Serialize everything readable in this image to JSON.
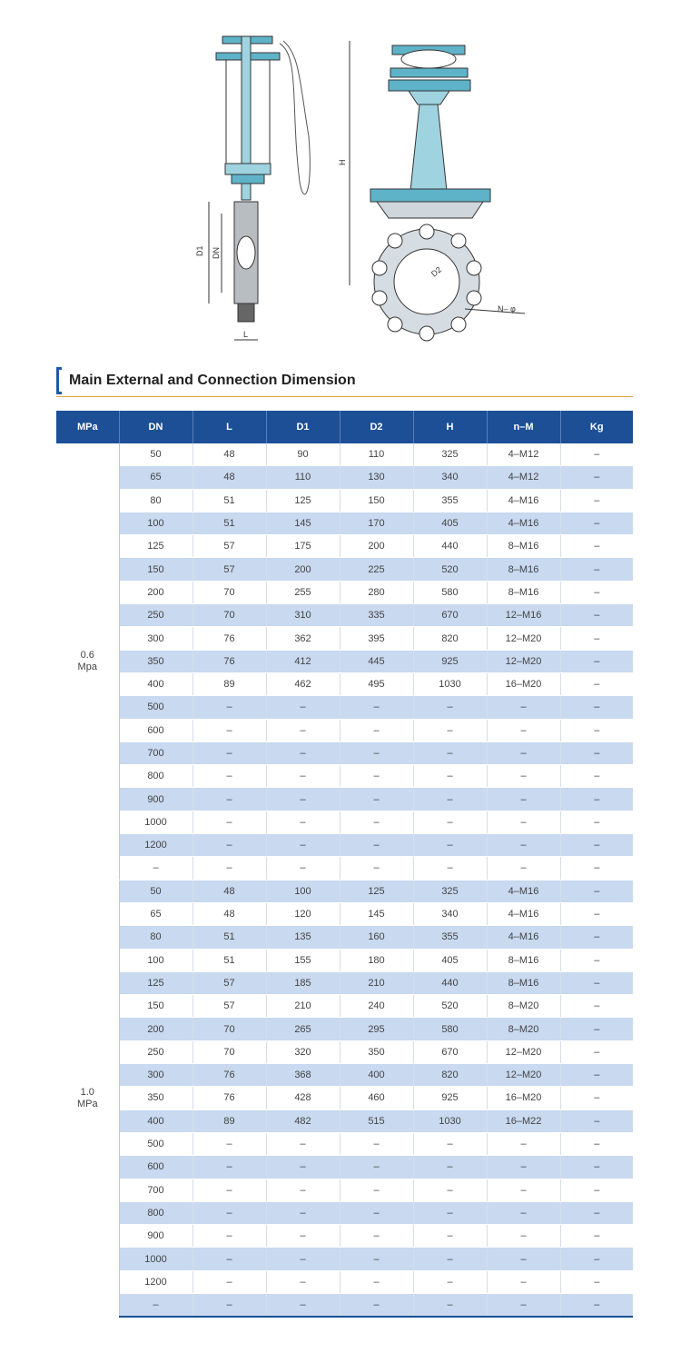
{
  "drawing": {
    "labels": {
      "h": "H",
      "d1": "D1",
      "dn": "DN",
      "l": "L",
      "d2": "D2",
      "n": "N– φ"
    }
  },
  "title": "Main External and Connection Dimension",
  "table": {
    "columns": [
      "MPa",
      "DN",
      "L",
      "D1",
      "D2",
      "H",
      "n–M",
      "Kg"
    ],
    "groups": [
      {
        "pressure": [
          "0.6",
          "Mpa"
        ],
        "rows": [
          [
            50,
            48,
            90,
            110,
            325,
            "4–M12",
            "–"
          ],
          [
            65,
            48,
            110,
            130,
            340,
            "4–M12",
            "–"
          ],
          [
            80,
            51,
            125,
            150,
            355,
            "4–M16",
            "–"
          ],
          [
            100,
            51,
            145,
            170,
            405,
            "4–M16",
            "–"
          ],
          [
            125,
            57,
            175,
            200,
            440,
            "8–M16",
            "–"
          ],
          [
            150,
            57,
            200,
            225,
            520,
            "8–M16",
            "–"
          ],
          [
            200,
            70,
            255,
            280,
            580,
            "8–M16",
            "–"
          ],
          [
            250,
            70,
            310,
            335,
            670,
            "12–M16",
            "–"
          ],
          [
            300,
            76,
            362,
            395,
            820,
            "12–M20",
            "–"
          ],
          [
            350,
            76,
            412,
            445,
            925,
            "12–M20",
            "–"
          ],
          [
            400,
            89,
            462,
            495,
            1030,
            "16–M20",
            "–"
          ],
          [
            500,
            "–",
            "–",
            "–",
            "–",
            "–",
            "–"
          ],
          [
            600,
            "–",
            "–",
            "–",
            "–",
            "–",
            "–"
          ],
          [
            700,
            "–",
            "–",
            "–",
            "–",
            "–",
            "–"
          ],
          [
            800,
            "–",
            "–",
            "–",
            "–",
            "–",
            "–"
          ],
          [
            900,
            "–",
            "–",
            "–",
            "–",
            "–",
            "–"
          ],
          [
            1000,
            "–",
            "–",
            "–",
            "–",
            "–",
            "–"
          ],
          [
            1200,
            "–",
            "–",
            "–",
            "–",
            "–",
            "–"
          ],
          [
            "–",
            "–",
            "–",
            "–",
            "–",
            "–",
            "–"
          ]
        ]
      },
      {
        "pressure": [
          "1.0",
          "MPa"
        ],
        "rows": [
          [
            50,
            48,
            100,
            125,
            325,
            "4–M16",
            "–"
          ],
          [
            65,
            48,
            120,
            145,
            340,
            "4–M16",
            "–"
          ],
          [
            80,
            51,
            135,
            160,
            355,
            "4–M16",
            "–"
          ],
          [
            100,
            51,
            155,
            180,
            405,
            "8–M16",
            "–"
          ],
          [
            125,
            57,
            185,
            210,
            440,
            "8–M16",
            "–"
          ],
          [
            150,
            57,
            210,
            240,
            520,
            "8–M20",
            "–"
          ],
          [
            200,
            70,
            265,
            295,
            580,
            "8–M20",
            "–"
          ],
          [
            250,
            70,
            320,
            350,
            670,
            "12–M20",
            "–"
          ],
          [
            300,
            76,
            368,
            400,
            820,
            "12–M20",
            "–"
          ],
          [
            350,
            76,
            428,
            460,
            925,
            "16–M20",
            "–"
          ],
          [
            400,
            89,
            482,
            515,
            1030,
            "16–M22",
            "–"
          ],
          [
            500,
            "–",
            "–",
            "–",
            "–",
            "–",
            "–"
          ],
          [
            600,
            "–",
            "–",
            "–",
            "–",
            "–",
            "–"
          ],
          [
            700,
            "–",
            "–",
            "–",
            "–",
            "–",
            "–"
          ],
          [
            800,
            "–",
            "–",
            "–",
            "–",
            "–",
            "–"
          ],
          [
            900,
            "–",
            "–",
            "–",
            "–",
            "–",
            "–"
          ],
          [
            1000,
            "–",
            "–",
            "–",
            "–",
            "–",
            "–"
          ],
          [
            1200,
            "–",
            "–",
            "–",
            "–",
            "–",
            "–"
          ],
          [
            "–",
            "–",
            "–",
            "–",
            "–",
            "–",
            "–"
          ]
        ]
      }
    ]
  }
}
